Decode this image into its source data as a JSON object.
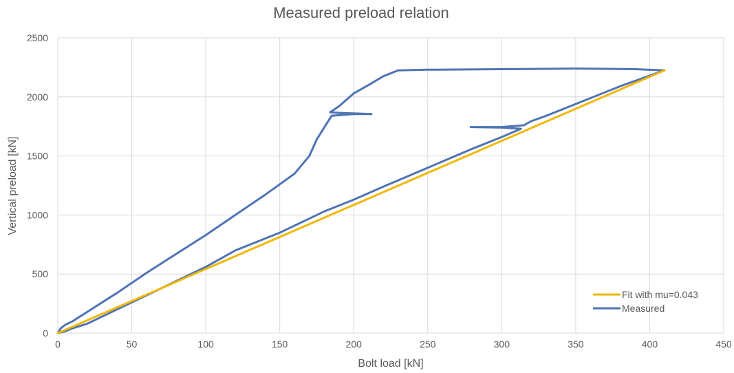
{
  "chart_data": {
    "type": "line",
    "title": "Measured preload relation",
    "xlabel": "Bolt load [kN]",
    "ylabel": "Vertical preload [kN]",
    "xlim": [
      0,
      450
    ],
    "ylim": [
      0,
      2500
    ],
    "xticks": [
      0,
      50,
      100,
      150,
      200,
      250,
      300,
      350,
      400,
      450
    ],
    "yticks": [
      0,
      500,
      1000,
      1500,
      2000,
      2500
    ],
    "grid": true,
    "legend_position": "bottom-right",
    "series": [
      {
        "name": "Fit with mu=0.043",
        "color": "#f2b705",
        "x": [
          0,
          410
        ],
        "y": [
          0,
          2225
        ]
      },
      {
        "name": "Measured",
        "color": "#4f74b3",
        "x": [
          0,
          2,
          5,
          10,
          20,
          40,
          60,
          80,
          100,
          120,
          140,
          160,
          170,
          175,
          185,
          200,
          212,
          200,
          190,
          184,
          190,
          200,
          210,
          220,
          230,
          250,
          300,
          350,
          390,
          410,
          400,
          380,
          350,
          330,
          320,
          315,
          300,
          290,
          279,
          300,
          313,
          300,
          280,
          250,
          220,
          200,
          180,
          150,
          120,
          100,
          80,
          60,
          40,
          20,
          10,
          5,
          0
        ],
        "y": [
          0,
          40,
          70,
          100,
          180,
          340,
          510,
          670,
          830,
          1000,
          1170,
          1350,
          1500,
          1640,
          1840,
          1855,
          1855,
          1860,
          1865,
          1870,
          1920,
          2030,
          2100,
          2175,
          2225,
          2230,
          2235,
          2240,
          2235,
          2225,
          2180,
          2090,
          1940,
          1840,
          1795,
          1760,
          1745,
          1745,
          1745,
          1740,
          1730,
          1660,
          1560,
          1400,
          1240,
          1130,
          1030,
          850,
          700,
          560,
          440,
          320,
          200,
          80,
          40,
          15,
          0
        ]
      }
    ]
  }
}
